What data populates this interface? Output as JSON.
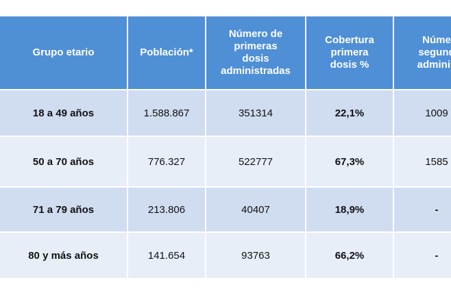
{
  "table": {
    "headers": [
      "Grupo etario",
      "Población*",
      "Número de\nprimeras\ndosis\nadministradas",
      "Cobertura\nprimera\ndosis %",
      "Núme\nsegund\nadminis"
    ],
    "rows": [
      {
        "grupo": "18 a 49 años",
        "poblacion": "1.588.867",
        "primeras": "351314",
        "cobertura": "22,1%",
        "segundas": "1009"
      },
      {
        "grupo": "50 a 70 años",
        "poblacion": "776.327",
        "primeras": "522777",
        "cobertura": "67,3%",
        "segundas": "1585"
      },
      {
        "grupo": "71 a 79 años",
        "poblacion": "213.806",
        "primeras": "40407",
        "cobertura": "18,9%",
        "segundas": "-"
      },
      {
        "grupo": "80 y más años",
        "poblacion": "141.654",
        "primeras": "93763",
        "cobertura": "66,2%",
        "segundas": "-"
      }
    ]
  },
  "colors": {
    "header_bg": "#4f8fd6",
    "row_odd_bg": "#d0dcef",
    "row_even_bg": "#e8eef8"
  }
}
